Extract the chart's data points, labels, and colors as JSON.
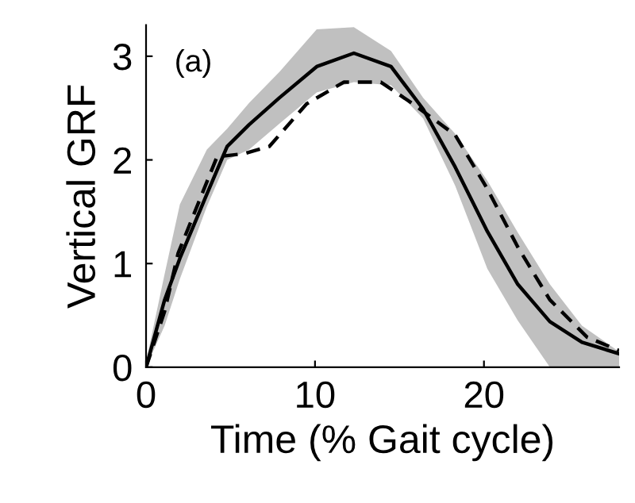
{
  "chart_data": {
    "type": "line",
    "xlabel": "Time (% Gait cycle)",
    "ylabel": "Vertical GRF",
    "annotations": [
      "(a)"
    ],
    "xlim": [
      0,
      28
    ],
    "ylim": [
      0,
      3.3
    ],
    "xticks": [
      0,
      10,
      20
    ],
    "yticks": [
      0,
      1,
      2,
      3
    ],
    "grid": false,
    "legend": false,
    "marker": "none",
    "series": [
      {
        "color": "#000000",
        "line_style": "solid",
        "x": [
          0,
          1.1,
          2.0,
          3.6,
          4.8,
          6.1,
          7.9,
          10.1,
          12.3,
          14.5,
          16.4,
          18.3,
          20.2,
          22.0,
          23.9,
          25.8,
          28
        ],
        "values": [
          0,
          0.65,
          1.05,
          1.67,
          2.13,
          2.34,
          2.6,
          2.9,
          3.03,
          2.9,
          2.49,
          1.93,
          1.31,
          0.8,
          0.44,
          0.24,
          0.13
        ],
        "lower": [
          0,
          0.4,
          0.85,
          1.55,
          2.0,
          2.1,
          2.35,
          2.65,
          2.75,
          2.72,
          2.4,
          1.75,
          0.95,
          0.45,
          0,
          0,
          0
        ],
        "upper": [
          0.05,
          0.9,
          1.57,
          2.1,
          2.3,
          2.55,
          2.85,
          3.26,
          3.28,
          3.05,
          2.6,
          2.25,
          1.8,
          1.3,
          0.8,
          0.4,
          0.15
        ]
      },
      {
        "color": "#000000",
        "line_style": "dashed",
        "x": [
          0,
          1.1,
          1.9,
          4.2,
          5.8,
          7.3,
          9.5,
          11.7,
          13.9,
          15.8,
          18.3,
          20.2,
          22.0,
          23.9,
          26.1,
          28
        ],
        "values": [
          0,
          0.54,
          1.1,
          2.03,
          2.06,
          2.13,
          2.54,
          2.75,
          2.75,
          2.54,
          2.24,
          1.72,
          1.16,
          0.65,
          0.29,
          0.16
        ]
      }
    ]
  }
}
